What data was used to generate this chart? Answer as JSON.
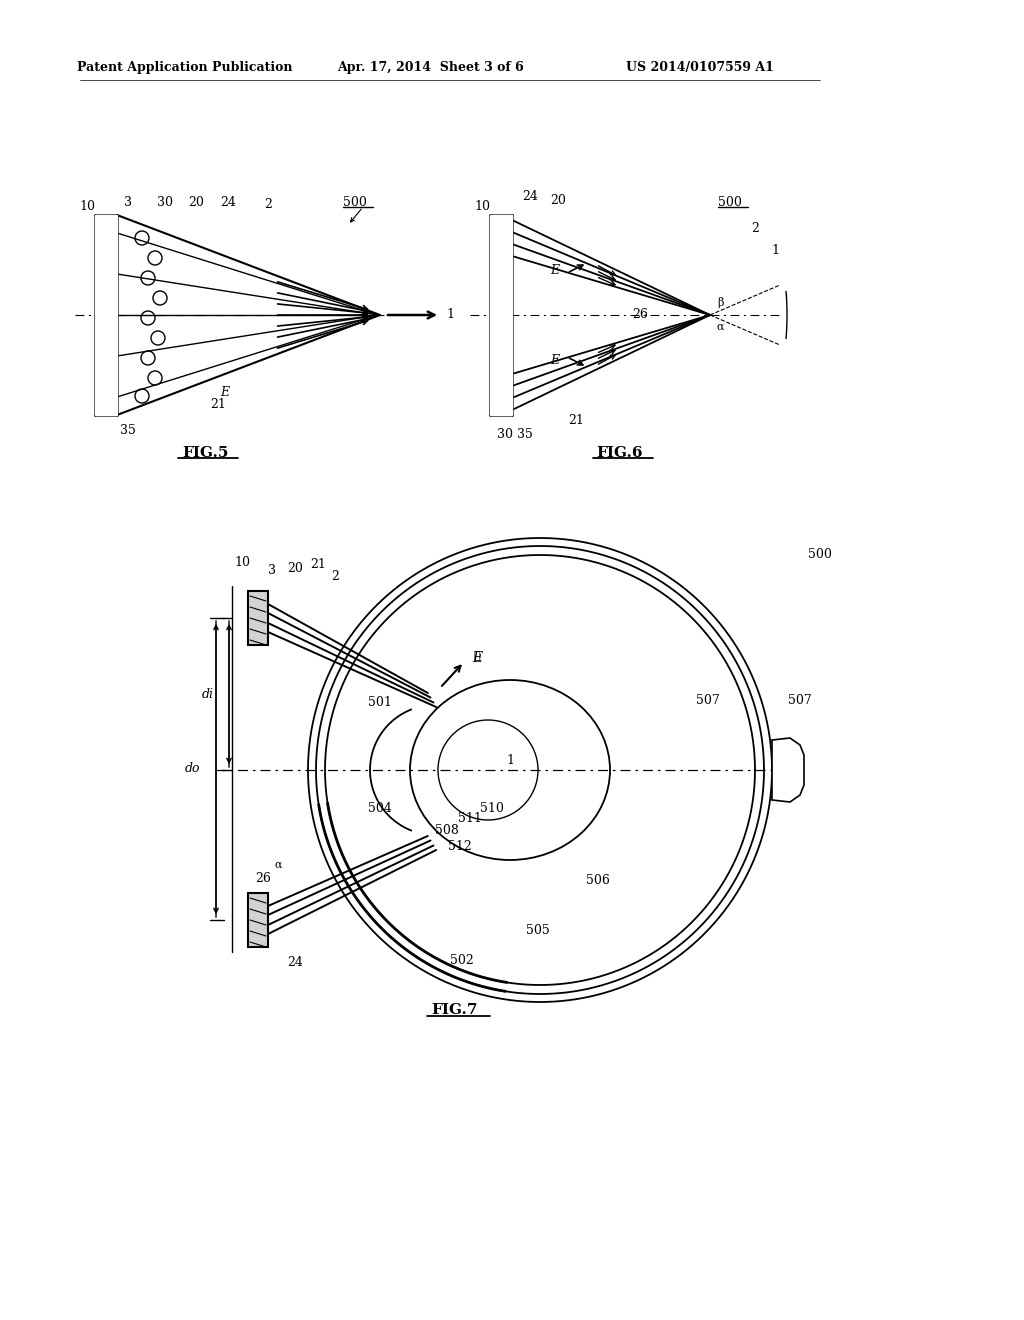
{
  "bg_color": "#ffffff",
  "line_color": "#000000",
  "header_left": "Patent Application Publication",
  "header_mid": "Apr. 17, 2014  Sheet 3 of 6",
  "header_right": "US 2014/0107559 A1"
}
